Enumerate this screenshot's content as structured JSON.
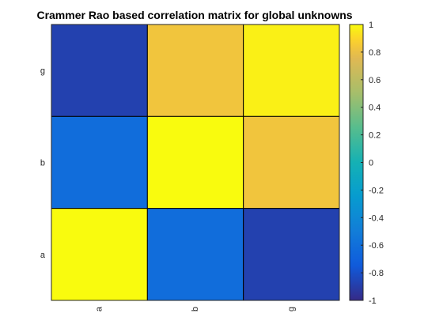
{
  "chart_data": {
    "type": "heatmap",
    "title": "Crammer Rao based correlation matrix for global unknowns",
    "x_categories": [
      "a",
      "b",
      "g"
    ],
    "y_categories": [
      "g",
      "b",
      "a"
    ],
    "values": [
      [
        -0.88,
        0.83,
        0.97
      ],
      [
        -0.62,
        1.0,
        0.83
      ],
      [
        1.0,
        -0.62,
        -0.88
      ]
    ],
    "colorbar": {
      "min": -1,
      "max": 1,
      "ticks": [
        "-1",
        "-0.8",
        "-0.6",
        "-0.4",
        "-0.2",
        "0",
        "0.2",
        "0.4",
        "0.6",
        "0.8",
        "1"
      ],
      "colormap": "parula"
    },
    "xlabel": "",
    "ylabel": "",
    "grid": false
  }
}
